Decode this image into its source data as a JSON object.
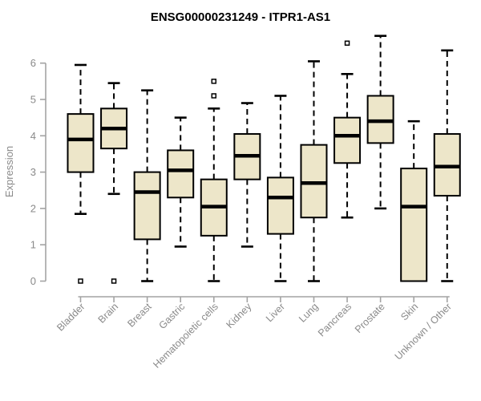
{
  "header": {
    "title": "ENSG00000231249 - ITPR1-AS1"
  },
  "chart_data": {
    "type": "boxplot",
    "title": "ENSG00000231249 - ITPR1-AS1",
    "xlabel": "",
    "ylabel": "Expression",
    "ylim": [
      0,
      6.8
    ],
    "yticks": [
      0,
      1,
      2,
      3,
      4,
      5,
      6
    ],
    "grid": false,
    "legend": "none",
    "categories": [
      "Bladder",
      "Brain",
      "Breast",
      "Gastric",
      "Hematopoietic cells",
      "Kidney",
      "Liver",
      "Lung",
      "Pancreas",
      "Prostate",
      "Skin",
      "Unknown / Other"
    ],
    "series": [
      {
        "name": "Bladder",
        "low": 1.85,
        "q1": 3.0,
        "median": 3.9,
        "q3": 4.6,
        "high": 5.95,
        "outliers": [
          0
        ]
      },
      {
        "name": "Brain",
        "low": 2.4,
        "q1": 3.65,
        "median": 4.2,
        "q3": 4.75,
        "high": 5.45,
        "outliers": [
          0
        ]
      },
      {
        "name": "Breast",
        "low": 0.0,
        "q1": 1.15,
        "median": 2.45,
        "q3": 3.0,
        "high": 5.25,
        "outliers": []
      },
      {
        "name": "Gastric",
        "low": 0.95,
        "q1": 2.3,
        "median": 3.05,
        "q3": 3.6,
        "high": 4.5,
        "outliers": []
      },
      {
        "name": "Hematopoietic cells",
        "low": 0.0,
        "q1": 1.25,
        "median": 2.05,
        "q3": 2.8,
        "high": 4.75,
        "outliers": [
          5.1,
          5.5
        ]
      },
      {
        "name": "Kidney",
        "low": 0.95,
        "q1": 2.8,
        "median": 3.45,
        "q3": 4.05,
        "high": 4.9,
        "outliers": []
      },
      {
        "name": "Liver",
        "low": 0.0,
        "q1": 1.3,
        "median": 2.3,
        "q3": 2.85,
        "high": 5.1,
        "outliers": []
      },
      {
        "name": "Lung",
        "low": 0.0,
        "q1": 1.75,
        "median": 2.7,
        "q3": 3.75,
        "high": 6.05,
        "outliers": []
      },
      {
        "name": "Pancreas",
        "low": 1.75,
        "q1": 3.25,
        "median": 4.0,
        "q3": 4.5,
        "high": 5.7,
        "outliers": [
          6.55
        ]
      },
      {
        "name": "Prostate",
        "low": 2.0,
        "q1": 3.8,
        "median": 4.4,
        "q3": 5.1,
        "high": 6.75,
        "outliers": []
      },
      {
        "name": "Skin",
        "low": 0.0,
        "q1": 0.0,
        "median": 2.05,
        "q3": 3.1,
        "high": 4.4,
        "outliers": []
      },
      {
        "name": "Unknown / Other",
        "low": 0.0,
        "q1": 2.35,
        "median": 3.15,
        "q3": 4.05,
        "high": 6.35,
        "outliers": []
      }
    ],
    "colors": {
      "box_fill": "#ede6c9",
      "box_stroke": "#000000",
      "median": "#000000",
      "whisker": "#000000",
      "outlier_stroke": "#000000",
      "axis_line": "#a3a3a3",
      "axis_text": "#8a8a8a",
      "title_text": "#000000"
    }
  }
}
